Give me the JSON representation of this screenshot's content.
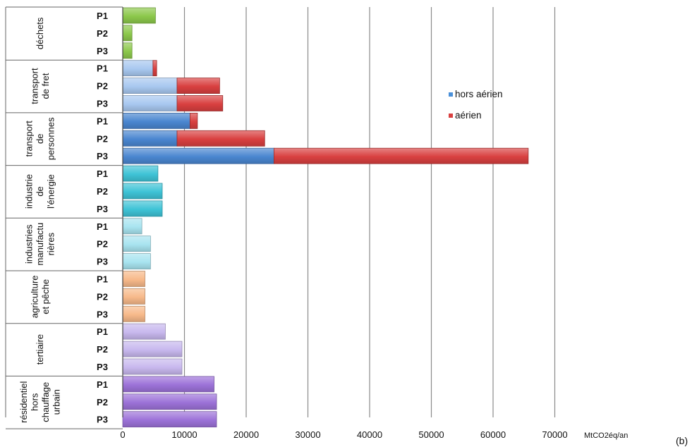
{
  "chart_data": {
    "type": "bar",
    "orientation": "horizontal",
    "stacked": true,
    "unit_label": "MtCO2éq/an",
    "panel_tag": "(b)",
    "xlim": [
      0,
      70000
    ],
    "xticks": [
      0,
      10000,
      20000,
      30000,
      40000,
      50000,
      60000,
      70000
    ],
    "grid": true,
    "legend": {
      "placement": "right",
      "entries": [
        {
          "name": "hors aérien",
          "color": "#4a90d9"
        },
        {
          "name": "aérien",
          "color": "#d94040"
        }
      ]
    },
    "groups": [
      {
        "label": [
          "déchets"
        ],
        "color": "#8cc84b",
        "bars": [
          {
            "label": "P1",
            "hors_aerien": 5300,
            "aerien": 0
          },
          {
            "label": "P2",
            "hors_aerien": 1500,
            "aerien": 0
          },
          {
            "label": "P3",
            "hors_aerien": 1500,
            "aerien": 0
          }
        ]
      },
      {
        "label": [
          "transport",
          "de fret"
        ],
        "color": "#a8c8f0",
        "bars": [
          {
            "label": "P1",
            "hors_aerien": 4900,
            "aerien": 600
          },
          {
            "label": "P2",
            "hors_aerien": 8800,
            "aerien": 6900
          },
          {
            "label": "P3",
            "hors_aerien": 8800,
            "aerien": 7400
          }
        ]
      },
      {
        "label": [
          "transport",
          "de",
          "personnes"
        ],
        "color": "#4a86d0",
        "bars": [
          {
            "label": "P1",
            "hors_aerien": 10900,
            "aerien": 1200
          },
          {
            "label": "P2",
            "hors_aerien": 8800,
            "aerien": 14200
          },
          {
            "label": "P3",
            "hors_aerien": 24500,
            "aerien": 41200
          }
        ]
      },
      {
        "label": [
          "industrie",
          "de",
          "l'énergie"
        ],
        "color": "#3ec3d6",
        "bars": [
          {
            "label": "P1",
            "hors_aerien": 5700,
            "aerien": 0
          },
          {
            "label": "P2",
            "hors_aerien": 6400,
            "aerien": 0
          },
          {
            "label": "P3",
            "hors_aerien": 6400,
            "aerien": 0
          }
        ]
      },
      {
        "label": [
          "industries",
          "manufactu",
          "rières"
        ],
        "color": "#a8e4f0",
        "bars": [
          {
            "label": "P1",
            "hors_aerien": 3100,
            "aerien": 0
          },
          {
            "label": "P2",
            "hors_aerien": 4500,
            "aerien": 0
          },
          {
            "label": "P3",
            "hors_aerien": 4500,
            "aerien": 0
          }
        ]
      },
      {
        "label": [
          "agriculture",
          "et pêche"
        ],
        "color": "#f7b98a",
        "bars": [
          {
            "label": "P1",
            "hors_aerien": 3600,
            "aerien": 0
          },
          {
            "label": "P2",
            "hors_aerien": 3600,
            "aerien": 0
          },
          {
            "label": "P3",
            "hors_aerien": 3600,
            "aerien": 0
          }
        ]
      },
      {
        "label": [
          "tertiaire"
        ],
        "color": "#c8b8ee",
        "bars": [
          {
            "label": "P1",
            "hors_aerien": 6900,
            "aerien": 0
          },
          {
            "label": "P2",
            "hors_aerien": 9600,
            "aerien": 0
          },
          {
            "label": "P3",
            "hors_aerien": 9600,
            "aerien": 0
          }
        ]
      },
      {
        "label": [
          "résidentiel",
          "hors",
          "chauffage",
          "urbain"
        ],
        "color": "#9c72d8",
        "bars": [
          {
            "label": "P1",
            "hors_aerien": 14800,
            "aerien": 0
          },
          {
            "label": "P2",
            "hors_aerien": 15200,
            "aerien": 0
          },
          {
            "label": "P3",
            "hors_aerien": 15200,
            "aerien": 0
          }
        ]
      }
    ]
  }
}
